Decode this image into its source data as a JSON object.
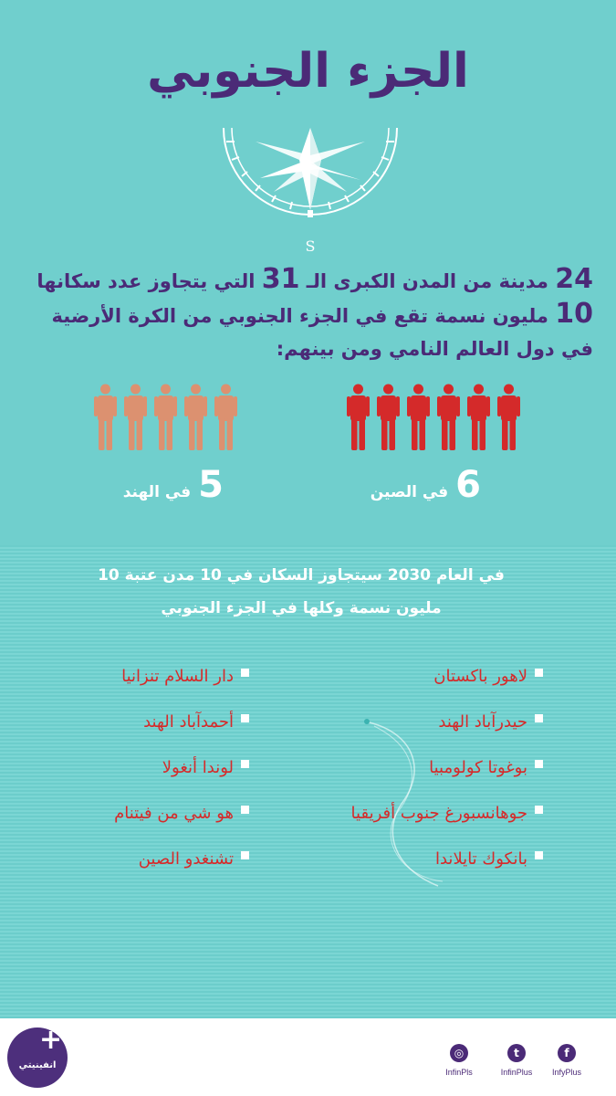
{
  "title": "الجزء الجنوبي",
  "compass_letter": "S",
  "intro": {
    "n1": "24",
    "t1": " مدينة من المدن الكبرى الـ ",
    "n2": "31",
    "t2": " التي يتجاوز عدد سكانها ",
    "n3": "10",
    "t3": " مليون نسمة تقع في الجزء الجنوبي من الكرة الأرضية في دول العالم النامي ومن بينهم:"
  },
  "china": {
    "count": "6",
    "label": "في الصين",
    "people": 6,
    "color": "#d42a2a"
  },
  "india": {
    "count": "5",
    "label": "في الهند",
    "people": 5,
    "color": "#dc9170"
  },
  "subhead": {
    "line1": "في العام 2030 سيتجاوز السكان في 10 مدن عتبة 10",
    "line2": "مليون نسمة وكلها في الجزء الجنوبي"
  },
  "cities_right": [
    "لاهور باكستان",
    "حيدرآباد الهند",
    "بوغوتا كولومبيا",
    "جوهانسبورغ جنوب أفريقيا",
    "بانكوك تايلاندا"
  ],
  "cities_left": [
    "دار السلام تنزانيا",
    "أحمدآباد الهند",
    "لوندا أنغولا",
    "هو شي من فيتنام",
    "تشنغدو الصين"
  ],
  "footer": {
    "logo_text": "انفينيتي",
    "social": [
      {
        "icon": "instagram-icon",
        "handle": "InfinPls"
      },
      {
        "icon": "twitter-icon",
        "handle": "InfinPlus"
      },
      {
        "icon": "facebook-icon",
        "handle": "InfyPlus"
      }
    ]
  },
  "colors": {
    "accent": "#4b2a77",
    "teal": "#70cfcd",
    "red": "#d42a2a",
    "tan": "#dc9170"
  }
}
